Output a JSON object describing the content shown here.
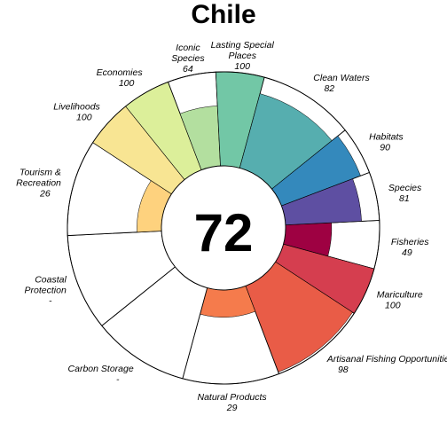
{
  "chart_data": {
    "type": "flower",
    "title": "Chile",
    "center_value": "72",
    "max_value": 100,
    "petals": [
      {
        "name": "Fisheries",
        "label_lines": [
          "Fisheries"
        ],
        "value_text": "49",
        "value": 49,
        "color": "#9e0142",
        "weight": 0.5
      },
      {
        "name": "Mariculture",
        "label_lines": [
          "Mariculture"
        ],
        "value_text": "100",
        "value": 100,
        "color": "#d53e4f",
        "weight": 0.5
      },
      {
        "name": "Artisanal Fishing Opportunities",
        "label_lines": [
          "Artisanal Fishing Opportunities"
        ],
        "value_text": "98",
        "value": 98,
        "color": "#e95c47",
        "weight": 1
      },
      {
        "name": "Natural Products",
        "label_lines": [
          "Natural Products"
        ],
        "value_text": "29",
        "value": 29,
        "color": "#f57b4c",
        "weight": 1
      },
      {
        "name": "Carbon Storage",
        "label_lines": [
          "Carbon Storage"
        ],
        "value_text": "-",
        "value": null,
        "color": "#fdae61",
        "weight": 1
      },
      {
        "name": "Coastal Protection",
        "label_lines": [
          "Coastal",
          "Protection"
        ],
        "value_text": "-",
        "value": null,
        "color": "#fdc777",
        "weight": 1
      },
      {
        "name": "Tourism & Recreation",
        "label_lines": [
          "Tourism &",
          "Recreation"
        ],
        "value_text": "26",
        "value": 26,
        "color": "#fed27e",
        "weight": 1
      },
      {
        "name": "Livelihoods",
        "label_lines": [
          "Livelihoods"
        ],
        "value_text": "100",
        "value": 100,
        "color": "#f8e593",
        "weight": 0.5
      },
      {
        "name": "Economies",
        "label_lines": [
          "Economies"
        ],
        "value_text": "100",
        "value": 100,
        "color": "#dcef9a",
        "weight": 0.5
      },
      {
        "name": "Iconic Species",
        "label_lines": [
          "Iconic",
          "Species"
        ],
        "value_text": "64",
        "value": 64,
        "color": "#b3df9f",
        "weight": 0.5
      },
      {
        "name": "Lasting Special Places",
        "label_lines": [
          "Lasting Special",
          "Places"
        ],
        "value_text": "100",
        "value": 100,
        "color": "#72c7a6",
        "weight": 0.5
      },
      {
        "name": "Clean Waters",
        "label_lines": [
          "Clean Waters"
        ],
        "value_text": "82",
        "value": 82,
        "color": "#56aeaf",
        "weight": 1
      },
      {
        "name": "Habitats",
        "label_lines": [
          "Habitats"
        ],
        "value_text": "90",
        "value": 90,
        "color": "#3489bc",
        "weight": 0.5
      },
      {
        "name": "Species",
        "label_lines": [
          "Species"
        ],
        "value_text": "81",
        "value": 81,
        "color": "#5e4fa2",
        "weight": 0.5
      }
    ]
  }
}
